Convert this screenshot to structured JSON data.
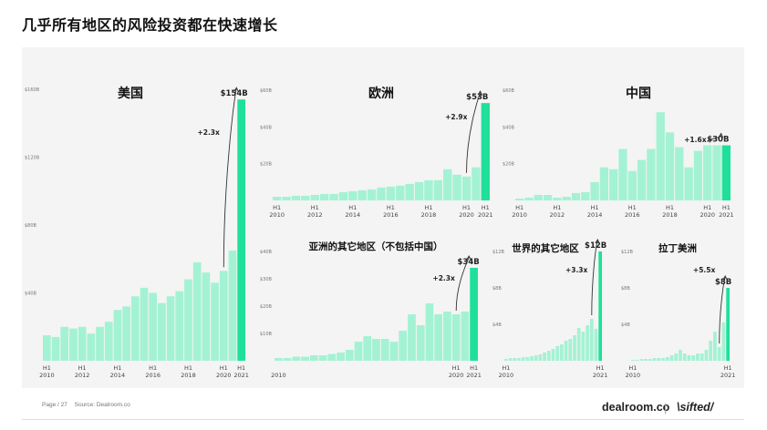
{
  "page": {
    "title": "几乎所有地区的风险投资都在快速增长",
    "footer_page": "Page / 27",
    "footer_source": "Source: Dealroom.co",
    "brand_dealroom": "dealroom.co",
    "brand_separator": "|",
    "brand_sifted": "\\sifted/"
  },
  "colors": {
    "bar": "#a4f2d4",
    "bar_highlight": "#1fe09a",
    "background": "#f4f4f4"
  },
  "chart_data": [
    {
      "id": "usa",
      "type": "bar",
      "title": "美国",
      "yticks": [
        "$160B",
        "$120B",
        "$80B",
        "$40B"
      ],
      "ylim": [
        0,
        160
      ],
      "xticks": [
        {
          "line1": "H1",
          "line2": "2010",
          "at": 0
        },
        {
          "line1": "H1",
          "line2": "2012",
          "at": 4
        },
        {
          "line1": "H1",
          "line2": "2014",
          "at": 8
        },
        {
          "line1": "H1",
          "line2": "2016",
          "at": 12
        },
        {
          "line1": "H1",
          "line2": "2018",
          "at": 16
        },
        {
          "line1": "H1",
          "line2": "2020",
          "at": 20
        },
        {
          "line1": "H1",
          "line2": "2021",
          "at": 22
        }
      ],
      "values": [
        15,
        14,
        20,
        19,
        20,
        16,
        20,
        23,
        30,
        32,
        38,
        43,
        40,
        34,
        38,
        41,
        48,
        58,
        52,
        46,
        53,
        65,
        154
      ],
      "highlight_index": 22,
      "value_label": "$154B",
      "multiplier": "+2.3x"
    },
    {
      "id": "europe",
      "type": "bar",
      "title": "欧洲",
      "yticks": [
        "$60B",
        "$40B",
        "$20B"
      ],
      "ylim": [
        0,
        60
      ],
      "xticks": [
        {
          "line1": "H1",
          "line2": "2010",
          "at": 0
        },
        {
          "line1": "H1",
          "line2": "2012",
          "at": 4
        },
        {
          "line1": "H1",
          "line2": "2014",
          "at": 8
        },
        {
          "line1": "H1",
          "line2": "2016",
          "at": 12
        },
        {
          "line1": "H1",
          "line2": "2018",
          "at": 16
        },
        {
          "line1": "H1",
          "line2": "2020",
          "at": 20
        },
        {
          "line1": "H1",
          "line2": "2021",
          "at": 22
        }
      ],
      "values": [
        2,
        2,
        2.5,
        2.5,
        3,
        3.5,
        3.5,
        4.5,
        5,
        5.5,
        6,
        7,
        7.5,
        8,
        9,
        10,
        11,
        11,
        17,
        14,
        13,
        18,
        53
      ],
      "highlight_index": 22,
      "value_label": "$53B",
      "multiplier": "+2.9x"
    },
    {
      "id": "china",
      "type": "bar",
      "title": "中国",
      "yticks": [
        "$60B",
        "$40B",
        "$20B"
      ],
      "ylim": [
        0,
        60
      ],
      "xticks": [
        {
          "line1": "H1",
          "line2": "2010",
          "at": 0
        },
        {
          "line1": "H1",
          "line2": "2012",
          "at": 4
        },
        {
          "line1": "H1",
          "line2": "2014",
          "at": 8
        },
        {
          "line1": "H1",
          "line2": "2016",
          "at": 12
        },
        {
          "line1": "H1",
          "line2": "2018",
          "at": 16
        },
        {
          "line1": "H1",
          "line2": "2020",
          "at": 20
        },
        {
          "line1": "H1",
          "line2": "2021",
          "at": 22
        }
      ],
      "values": [
        1,
        1.5,
        3,
        3,
        1.5,
        2,
        4,
        4.5,
        10,
        18,
        17,
        28,
        16,
        22,
        28,
        48,
        37,
        29,
        18,
        27,
        30,
        30,
        30
      ],
      "highlight_index": 22,
      "value_label": "$30B",
      "multiplier": "+1.6x"
    },
    {
      "id": "asia-other",
      "type": "bar",
      "title": "亚洲的其它地区（不包括中国）",
      "yticks": [
        "$40B",
        "$30B",
        "$20B",
        "$10B"
      ],
      "ylim": [
        0,
        40
      ],
      "xticks": [
        {
          "line1": "",
          "line2": "2010",
          "at": 0
        },
        {
          "line1": "H1",
          "line2": "2020",
          "at": 20
        },
        {
          "line1": "H1",
          "line2": "2021",
          "at": 22
        }
      ],
      "values": [
        1,
        1,
        1.5,
        1.5,
        2,
        2,
        2.5,
        3,
        4,
        7,
        9,
        8,
        8,
        7,
        11,
        17,
        13,
        21,
        17,
        18,
        17,
        18,
        34
      ],
      "highlight_index": 22,
      "value_label": "$34B",
      "multiplier": "+2.3x"
    },
    {
      "id": "rest-of-world",
      "type": "bar",
      "title": "世界的其它地区",
      "yticks": [
        "$12B",
        "$8B",
        "$4B"
      ],
      "ylim": [
        0,
        12
      ],
      "xticks": [
        {
          "line1": "H1",
          "line2": "2010",
          "at": 0
        },
        {
          "line1": "H1",
          "line2": "2021",
          "at": 22
        }
      ],
      "values": [
        0.2,
        0.3,
        0.3,
        0.3,
        0.4,
        0.4,
        0.5,
        0.6,
        0.7,
        0.9,
        1.1,
        1.3,
        1.6,
        1.8,
        2.2,
        2.4,
        2.8,
        3.6,
        3.2,
        3.9,
        4.6,
        3.5,
        12
      ],
      "highlight_index": 22,
      "value_label": "$12B",
      "multiplier": "+3.3x"
    },
    {
      "id": "latam",
      "type": "bar",
      "title": "拉丁美洲",
      "yticks": [
        "$12B",
        "$8B",
        "$4B"
      ],
      "ylim": [
        0,
        12
      ],
      "xticks": [
        {
          "line1": "H1",
          "line2": "2010",
          "at": 0
        },
        {
          "line1": "H1",
          "line2": "2021",
          "at": 22
        }
      ],
      "values": [
        0.1,
        0.1,
        0.2,
        0.2,
        0.2,
        0.3,
        0.3,
        0.3,
        0.4,
        0.6,
        0.8,
        1.2,
        0.8,
        0.6,
        0.6,
        0.8,
        0.8,
        1.2,
        2.2,
        3.2,
        1.5,
        4.2,
        8
      ],
      "highlight_index": 22,
      "value_label": "$8B",
      "multiplier": "+5.5x"
    }
  ]
}
